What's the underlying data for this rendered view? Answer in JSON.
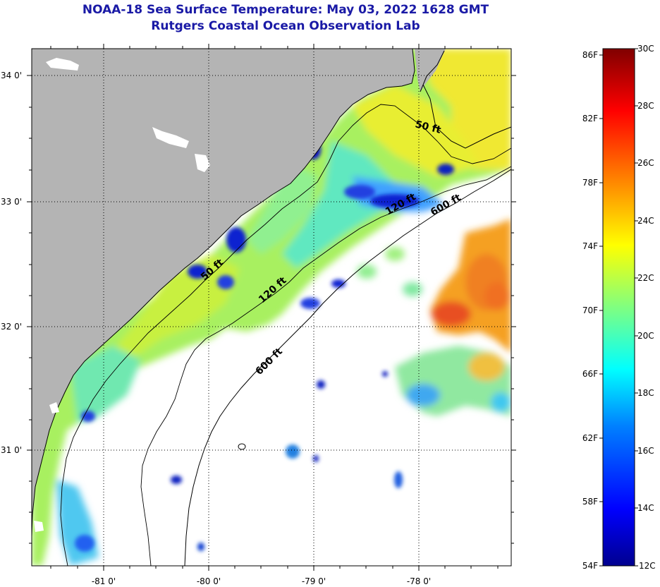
{
  "title": "NOAA-18 Sea Surface Temperature:  May 03, 2022 1628 GMT",
  "subtitle": "Rutgers Coastal Ocean Observation Lab",
  "lat_ticks": [
    "34 0'",
    "33 0'",
    "32 0'",
    "31 0'"
  ],
  "lon_ticks": [
    "-81 0'",
    "-80 0'",
    "-79 0'",
    "-78 0'"
  ],
  "contours": {
    "c50a": "50 ft",
    "c50b": "50 ft",
    "c120a": "120 ft",
    "c120b": "120 ft",
    "c600a": "600 ft",
    "c600b": "600 ft"
  },
  "colorbar": {
    "fahrenheit": [
      "86F",
      "82F",
      "78F",
      "74F",
      "70F",
      "66F",
      "62F",
      "58F",
      "54F"
    ],
    "celsius": [
      "30C",
      "28C",
      "26C",
      "24C",
      "22C",
      "20C",
      "18C",
      "16C",
      "14C",
      "12C"
    ]
  },
  "colors": {
    "land": "#b4b4b4",
    "no_data": "#ffffff",
    "title": "#1a1aa6"
  }
}
